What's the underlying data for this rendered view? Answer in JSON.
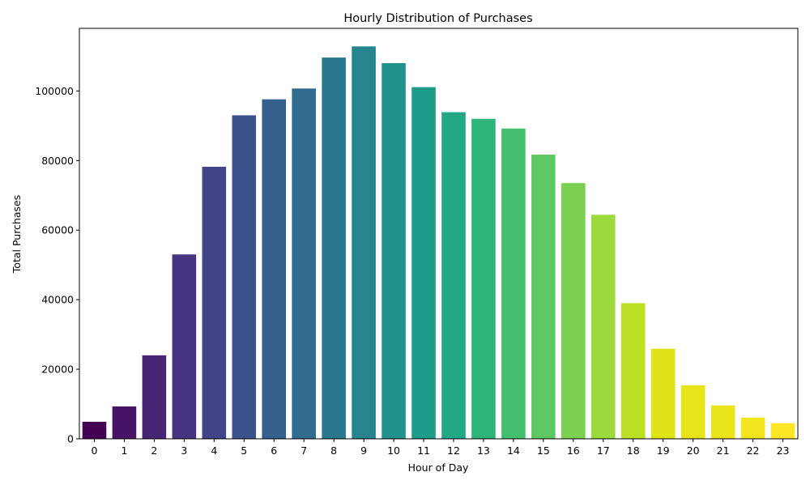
{
  "chart_data": {
    "type": "bar",
    "title": "Hourly Distribution of Purchases",
    "xlabel": "Hour of Day",
    "ylabel": "Total Purchases",
    "categories": [
      "0",
      "1",
      "2",
      "3",
      "4",
      "5",
      "6",
      "7",
      "8",
      "9",
      "10",
      "11",
      "12",
      "13",
      "14",
      "15",
      "16",
      "17",
      "18",
      "19",
      "20",
      "21",
      "22",
      "23"
    ],
    "values": [
      4900,
      9300,
      24000,
      53000,
      78200,
      93000,
      97600,
      100700,
      109600,
      112800,
      108000,
      101100,
      93900,
      92000,
      89200,
      81700,
      73500,
      64400,
      39000,
      25900,
      15400,
      9600,
      6100,
      4500
    ],
    "ylim": [
      0,
      118000
    ],
    "yticks": [
      0,
      20000,
      40000,
      60000,
      80000,
      100000
    ],
    "grid": false,
    "legend": "none",
    "colormap": "viridis",
    "colors": [
      "#440154",
      "#471365",
      "#482475",
      "#463480",
      "#414487",
      "#3b528b",
      "#355f8d",
      "#2f6c8e",
      "#2a788e",
      "#25848e",
      "#21918c",
      "#1e9c89",
      "#22a884",
      "#2fb47c",
      "#44bf70",
      "#5ec962",
      "#7ad151",
      "#9bd93c",
      "#bddf26",
      "#dfe318",
      "#e7e419",
      "#eae51a",
      "#f0e61b",
      "#fde725"
    ]
  }
}
